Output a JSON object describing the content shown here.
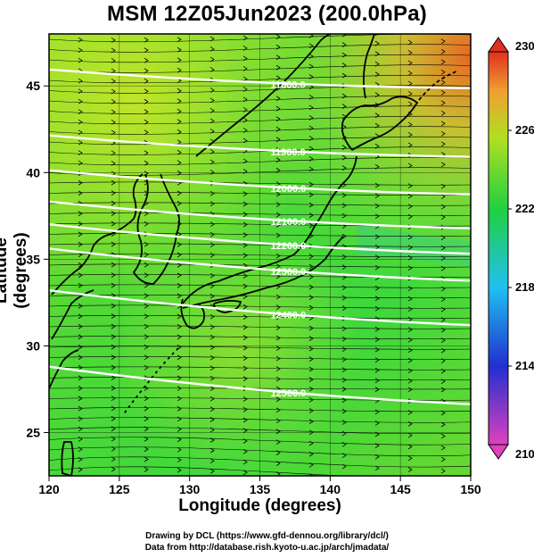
{
  "title": "MSM 12Z05Jun2023 (200.0hPa)",
  "axes": {
    "xlabel": "Longitude (degrees)",
    "ylabel": "Latitude  (degrees)",
    "xlim": [
      120,
      150
    ],
    "ylim": [
      22.5,
      48
    ],
    "xticks": [
      120,
      125,
      130,
      135,
      140,
      145,
      150
    ],
    "yticks": [
      25,
      30,
      35,
      40,
      45
    ]
  },
  "colorbar": {
    "min": 210,
    "max": 230,
    "ticks": [
      210,
      214,
      218,
      222,
      226,
      230
    ],
    "colors": [
      "#e040c0",
      "#2030d0",
      "#20c0f0",
      "#20d040",
      "#b0e020",
      "#f0a030",
      "#e03020"
    ]
  },
  "contours": [
    {
      "label": "11800.0",
      "lat_at_135": 45.3
    },
    {
      "label": "11900.0",
      "lat_at_135": 41.4
    },
    {
      "label": "12000.0",
      "lat_at_135": 39.3
    },
    {
      "label": "12100.0",
      "lat_at_135": 37.4
    },
    {
      "label": "12200.0",
      "lat_at_135": 36.0
    },
    {
      "label": "12300.0",
      "lat_at_135": 34.5
    },
    {
      "label": "12400.0",
      "lat_at_135": 32.0
    },
    {
      "label": "12500.0",
      "lat_at_135": 27.5
    }
  ],
  "credits": {
    "line1": "Drawing by DCL (https://www.gfd-dennou.org/library/dcl/)",
    "line2": "Data from http://database.rish.kyoto-u.ac.jp/arch/jmadata/"
  }
}
